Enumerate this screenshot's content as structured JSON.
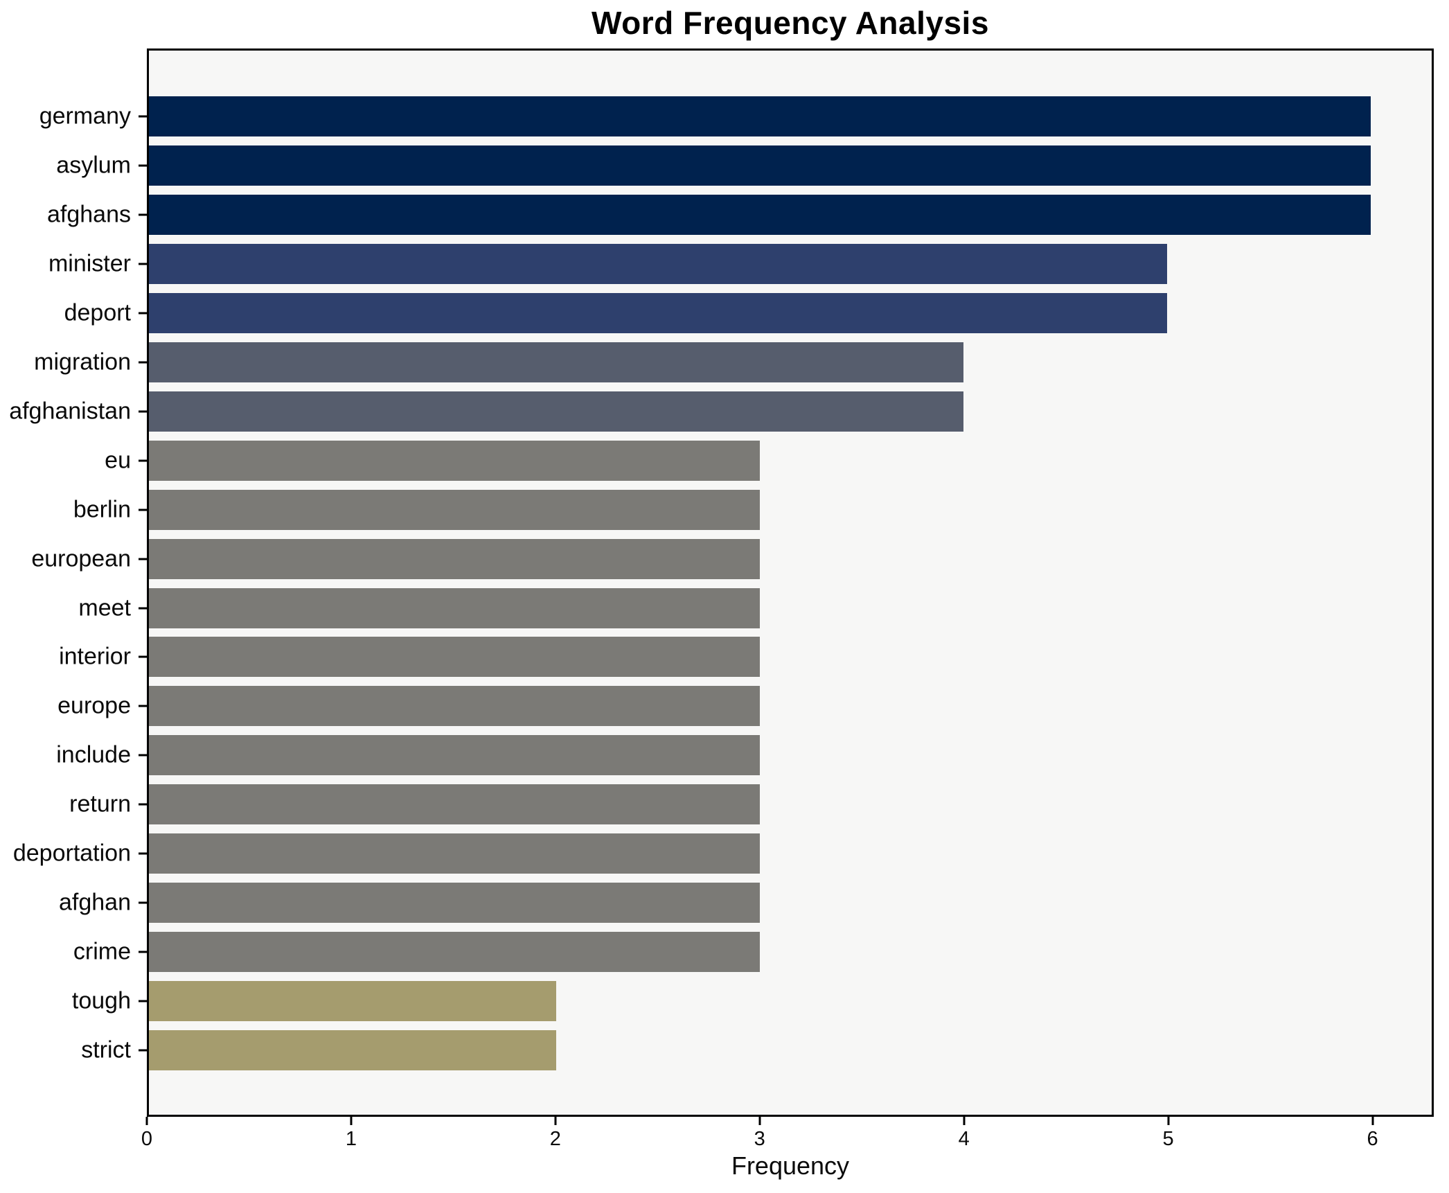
{
  "page": {
    "title_label": "Word Frequency Analysis",
    "x_axis_label": "Frequency"
  },
  "chart_data": {
    "type": "bar",
    "orientation": "horizontal",
    "title": "Word Frequency Analysis",
    "xlabel": "Frequency",
    "ylabel": "",
    "categories": [
      "germany",
      "asylum",
      "afghans",
      "minister",
      "deport",
      "migration",
      "afghanistan",
      "eu",
      "berlin",
      "european",
      "meet",
      "interior",
      "europe",
      "include",
      "return",
      "deportation",
      "afghan",
      "crime",
      "tough",
      "strict"
    ],
    "values": [
      6,
      6,
      6,
      5,
      5,
      4,
      4,
      3,
      3,
      3,
      3,
      3,
      3,
      3,
      3,
      3,
      3,
      3,
      2,
      2
    ],
    "xlim": [
      0,
      6.3
    ],
    "xticks": [
      0,
      1,
      2,
      3,
      4,
      5,
      6
    ],
    "grid": false,
    "legend": null,
    "bar_colors_by_value": {
      "2": "#a59c6e",
      "3": "#7b7a76",
      "4": "#565d6d",
      "5": "#2e406d",
      "6": "#00224e"
    },
    "plot_background": "#f7f7f6",
    "figure_background": "#ffffff",
    "spine_color": "#000000"
  }
}
